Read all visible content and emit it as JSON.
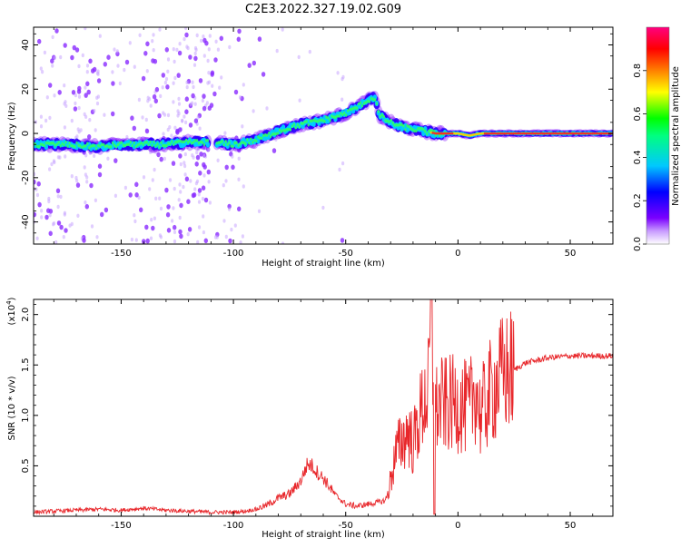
{
  "figure": {
    "title": "C2E3.2022.327.19.02.G09"
  },
  "colors": {
    "snr_line": "#e8262a",
    "axis": "#000000",
    "spectrum_core": "#ff1e1e",
    "colormap": [
      "#ffffff",
      "#7a00ff",
      "#0000ff",
      "#00c8ff",
      "#00ff40",
      "#ffff00",
      "#ff8000",
      "#ff0000",
      "#ff0080"
    ]
  },
  "chart_data": [
    {
      "type": "heatmap",
      "title": "C2E3.2022.327.19.02.G09",
      "xlabel": "Height of straight line (km)",
      "ylabel": "Frequency (Hz)",
      "xlim": [
        -189,
        69
      ],
      "ylim": [
        -50,
        48
      ],
      "xticks": [
        -150,
        -100,
        -50,
        0,
        50
      ],
      "yticks": [
        -40,
        -20,
        0,
        20,
        40
      ],
      "colorbar": {
        "label": "Normalized spectral amplitude",
        "range": [
          0.0,
          1.0
        ],
        "ticks": [
          "0.0",
          "0.2",
          "0.4",
          "0.6",
          "0.8"
        ],
        "placement": "right"
      },
      "ridge": {
        "x": [
          -189,
          -175,
          -160,
          -150,
          -140,
          -130,
          -120,
          -110,
          -100,
          -90,
          -80,
          -70,
          -60,
          -50,
          -45,
          -40,
          -37,
          -35,
          -30,
          -25,
          -20,
          -15,
          -10,
          -5,
          0,
          5,
          10,
          20,
          30,
          40,
          50,
          60,
          69
        ],
        "frequency_hz": [
          -5,
          -5,
          -6,
          -5,
          -5,
          -5,
          -4,
          -4,
          -5,
          -3,
          1,
          4,
          6,
          9,
          12,
          15,
          16,
          8,
          5,
          3,
          2,
          1,
          0,
          0,
          0,
          -1,
          0,
          0,
          0,
          0,
          0,
          0,
          0
        ]
      }
    },
    {
      "type": "line",
      "xlabel": "Height of straight line (km)",
      "ylabel": "SNR (10 * v/v)",
      "y_multiplier": "(x10",
      "y_multiplier_exp": "4",
      "y_multiplier_close": ")",
      "xlim": [
        -189,
        69
      ],
      "ylim": [
        0,
        2.15
      ],
      "xticks": [
        -150,
        -100,
        -50,
        0,
        50
      ],
      "yticks": [
        0.5,
        1.0,
        1.5,
        2.0
      ],
      "ytick_labels": [
        "0.5",
        "1.0",
        "1.5",
        "2.0"
      ],
      "series": [
        {
          "x": [
            -189,
            -180,
            -170,
            -160,
            -150,
            -140,
            -130,
            -120,
            -110,
            -100,
            -95,
            -90,
            -85,
            -80,
            -75,
            -70,
            -67,
            -65,
            -62,
            -60,
            -55,
            -50,
            -45,
            -40,
            -35,
            -32,
            -30,
            -28,
            -25,
            -22,
            -20,
            -18,
            -15,
            -13,
            -12,
            -11,
            -10,
            -8,
            -5,
            0,
            5,
            8,
            10,
            15,
            20,
            25,
            30,
            40,
            50,
            60,
            69
          ],
          "values": [
            0.04,
            0.05,
            0.06,
            0.07,
            0.06,
            0.08,
            0.06,
            0.05,
            0.04,
            0.04,
            0.05,
            0.07,
            0.11,
            0.18,
            0.22,
            0.35,
            0.52,
            0.5,
            0.42,
            0.38,
            0.22,
            0.12,
            0.1,
            0.12,
            0.14,
            0.16,
            0.35,
            0.6,
            0.75,
            0.85,
            0.7,
            0.9,
            1.15,
            1.25,
            2.15,
            1.2,
            1.05,
            1.1,
            1.1,
            1.12,
            1.05,
            1.3,
            1.0,
            1.25,
            1.4,
            1.45,
            1.52,
            1.57,
            1.59,
            1.59,
            1.59
          ]
        }
      ]
    }
  ]
}
